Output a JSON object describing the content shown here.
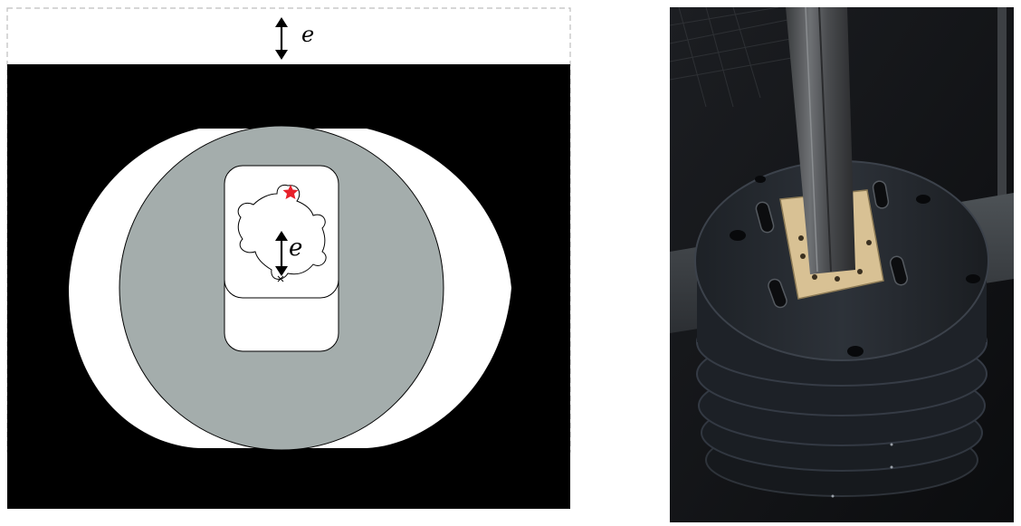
{
  "diagram": {
    "top_offset_label": "e",
    "inner_offset_label": "e",
    "colors": {
      "background": "#000000",
      "disk": "#a4adac",
      "cutout": "#ffffff",
      "star": "#e8202a",
      "dashed": "#bdbdbd"
    }
  },
  "photo": {
    "description_icon": "experimental-rig-photo"
  }
}
